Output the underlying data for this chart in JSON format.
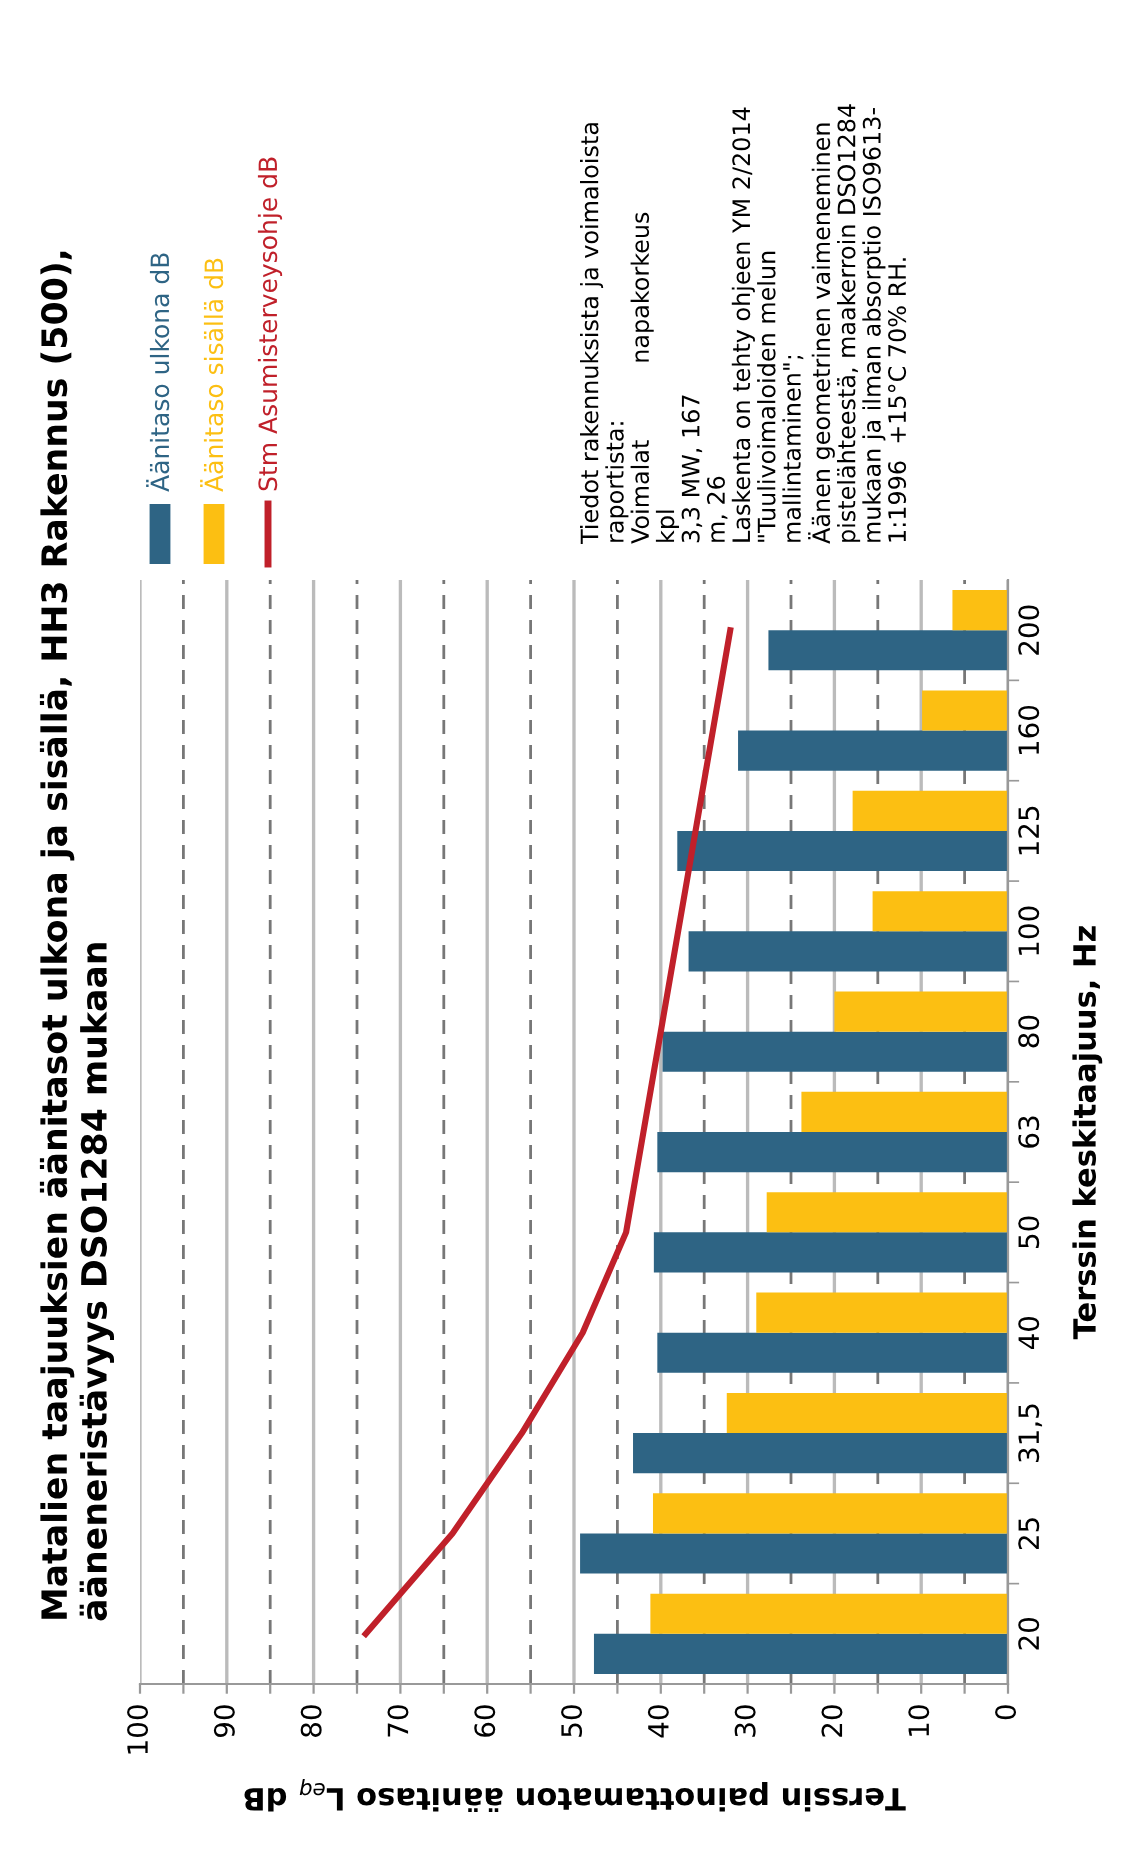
{
  "chart_data": {
    "type": "bar",
    "orientation": "horizontal",
    "title": "Matalien taajuuksien äänitasot ulkona ja sisällä, HH3 Rakennus (500),\nääneneristävyys DSO1284 mukaan",
    "xlabel": "Terssin painottamaton äänitaso L$_{eq}$ dB",
    "ylabel": "Terssin keskitaajuus, Hz",
    "categories": [
      "200",
      "160",
      "125",
      "100",
      "80",
      "63",
      "50",
      "40",
      "31,5",
      "25",
      "20"
    ],
    "series": [
      {
        "name": "Äänitaso ulkona dB",
        "color": "#2e6484",
        "values": [
          27.6,
          31.1,
          38.1,
          36.8,
          39.8,
          40.4,
          40.8,
          40.4,
          43.2,
          49.3,
          47.7
        ]
      },
      {
        "name": "Äänitaso sisällä dB",
        "color": "#fcbf12",
        "values": [
          6.4,
          9.9,
          17.9,
          15.6,
          20.0,
          23.8,
          27.8,
          29.0,
          32.4,
          40.9,
          41.2
        ]
      },
      {
        "name": "Stm Asumisterveysohje dB",
        "color": "#c0202a",
        "type": "line",
        "values": [
          32,
          34,
          36,
          38,
          40,
          42,
          44,
          49,
          56,
          64,
          74
        ]
      }
    ],
    "xlim": [
      100,
      0
    ],
    "xticks": [
      0,
      {
        "value": 5,
        "label": null
      },
      10,
      {
        "value": 15,
        "label": null
      },
      20,
      {
        "value": 25,
        "label": null
      },
      30,
      {
        "value": 35,
        "label": null
      },
      40,
      {
        "value": 45,
        "label": null
      },
      50,
      {
        "value": 55,
        "label": null
      },
      60,
      {
        "value": 65,
        "label": null
      },
      70,
      {
        "value": 75,
        "label": null
      },
      80,
      {
        "value": 85,
        "label": null
      },
      90,
      {
        "value": 95,
        "label": null
      },
      100
    ],
    "grid": "x",
    "legend": "top left",
    "annotations": [
      "Tiedot rakennuksista ja voimaloista\nraportista:\nVoimalat          napakorkeus\nkpl\n3,3 MW, 167\nm, 26\nLaskenta on tehty ohjeen YM 2/2014\n\"Tuulivoimaloiden melun\nmallintaminen\";\nÄänen geometrinen vaimeneminen\npistelähteestä, maakerroin DSO1284\nmukaan ja ilman absorptio ISO9613-\n1:1996  +15°C 70% RH."
    ]
  }
}
